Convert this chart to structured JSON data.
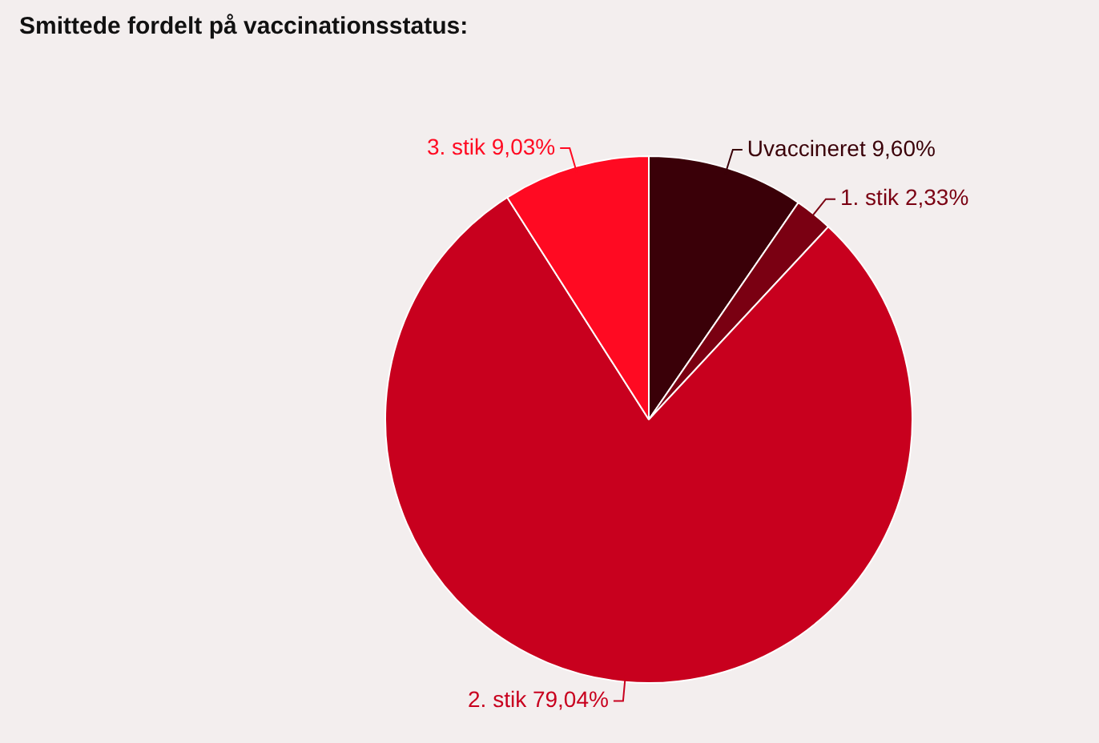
{
  "chart_data": {
    "type": "pie",
    "title": "Smittede fordelt på vaccinationsstatus:",
    "categories": [
      "Uvaccineret",
      "1. stik",
      "2. stik",
      "3. stik"
    ],
    "values": [
      9.6,
      2.33,
      79.04,
      9.03
    ],
    "colors": [
      "#3a0008",
      "#7a0012",
      "#c8001e",
      "#ff0a22"
    ],
    "value_labels": [
      "9,60%",
      "2,33%",
      "79,04%",
      "9,03%"
    ],
    "legend": false
  }
}
